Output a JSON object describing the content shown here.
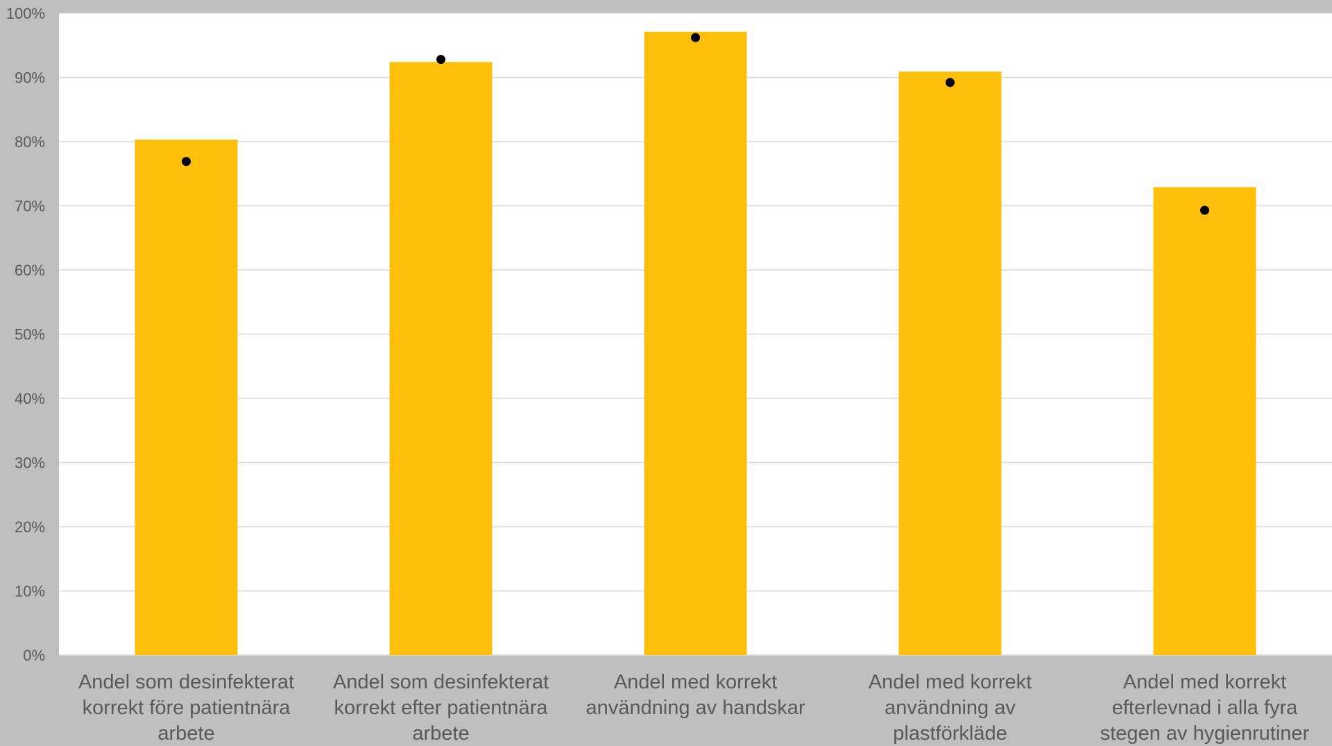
{
  "colors": {
    "background": "#bfbfbf",
    "plot_area": "#ffffff",
    "gridline": "#d9d9d9",
    "bar": "#fdbf0b",
    "marker": "#000000",
    "text": "#595959"
  },
  "chart_data": {
    "type": "bar",
    "title": "",
    "xlabel": "",
    "ylabel": "",
    "ylim": [
      0,
      1
    ],
    "grid": true,
    "y_tick_format": "percent",
    "y_ticks": [
      "0%",
      "10%",
      "20%",
      "30%",
      "40%",
      "50%",
      "60%",
      "70%",
      "80%",
      "90%",
      "100%"
    ],
    "categories": [
      "Andel som desinfekterat korrekt före patientnära arbete",
      "Andel som desinfekterat korrekt efter patientnära arbete",
      "Andel med korrekt användning av handskar",
      "Andel med korrekt användning av plastförkläde",
      "Andel med korrekt efterlevnad i alla fyra stegen av hygienrutiner"
    ],
    "category_label_lines": [
      [
        "Andel som desinfekterat",
        "korrekt före patientnära",
        "arbete"
      ],
      [
        "Andel som desinfekterat",
        "korrekt efter patientnära",
        "arbete"
      ],
      [
        "Andel med korrekt",
        "användning av handskar"
      ],
      [
        "Andel med korrekt",
        "användning av",
        "plastförkläde"
      ],
      [
        "Andel med korrekt",
        "efterlevnad i alla fyra",
        "stegen av hygienrutiner"
      ]
    ],
    "series": [
      {
        "type": "bar",
        "values": [
          0.803,
          0.924,
          0.971,
          0.909,
          0.729
        ]
      },
      {
        "type": "marker",
        "values": [
          0.769,
          0.928,
          0.962,
          0.892,
          0.693
        ]
      }
    ]
  }
}
